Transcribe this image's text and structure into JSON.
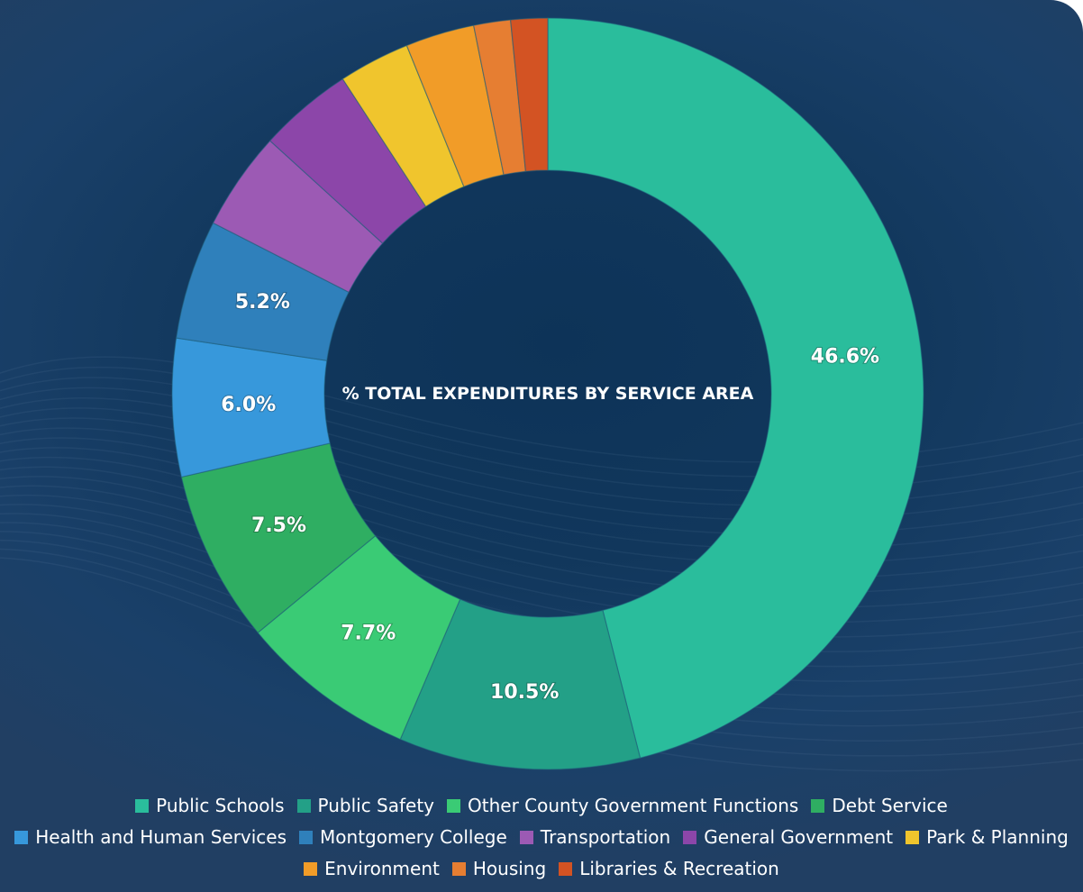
{
  "chart_data": {
    "type": "pie",
    "title": "% TOTAL EXPENDITURES BY SERVICE AREA",
    "legend_position": "bottom",
    "categories": [
      "Public Schools",
      "Public Safety",
      "Other County Government Functions",
      "Debt Service",
      "Health and Human Services",
      "Montgomery College",
      "Transportation",
      "General Government",
      "Park & Planning",
      "Environment",
      "Housing",
      "Libraries & Recreation"
    ],
    "values": [
      46.6,
      10.5,
      7.7,
      7.5,
      6.0,
      5.2,
      4.3,
      4.1,
      3.1,
      3.0,
      1.6,
      1.6
    ],
    "data_labels": [
      "46.6%",
      "10.5%",
      "7.7%",
      "7.5%",
      "6.0%",
      "5.2%",
      "",
      "",
      "",
      "",
      "",
      ""
    ],
    "colors": [
      "#2abd9c",
      "#23a087",
      "#3acb75",
      "#2fae62",
      "#3798db",
      "#2f80bb",
      "#9c5ab4",
      "#8c46a9",
      "#f0c52d",
      "#f19c28",
      "#e67e32",
      "#d35323"
    ]
  }
}
